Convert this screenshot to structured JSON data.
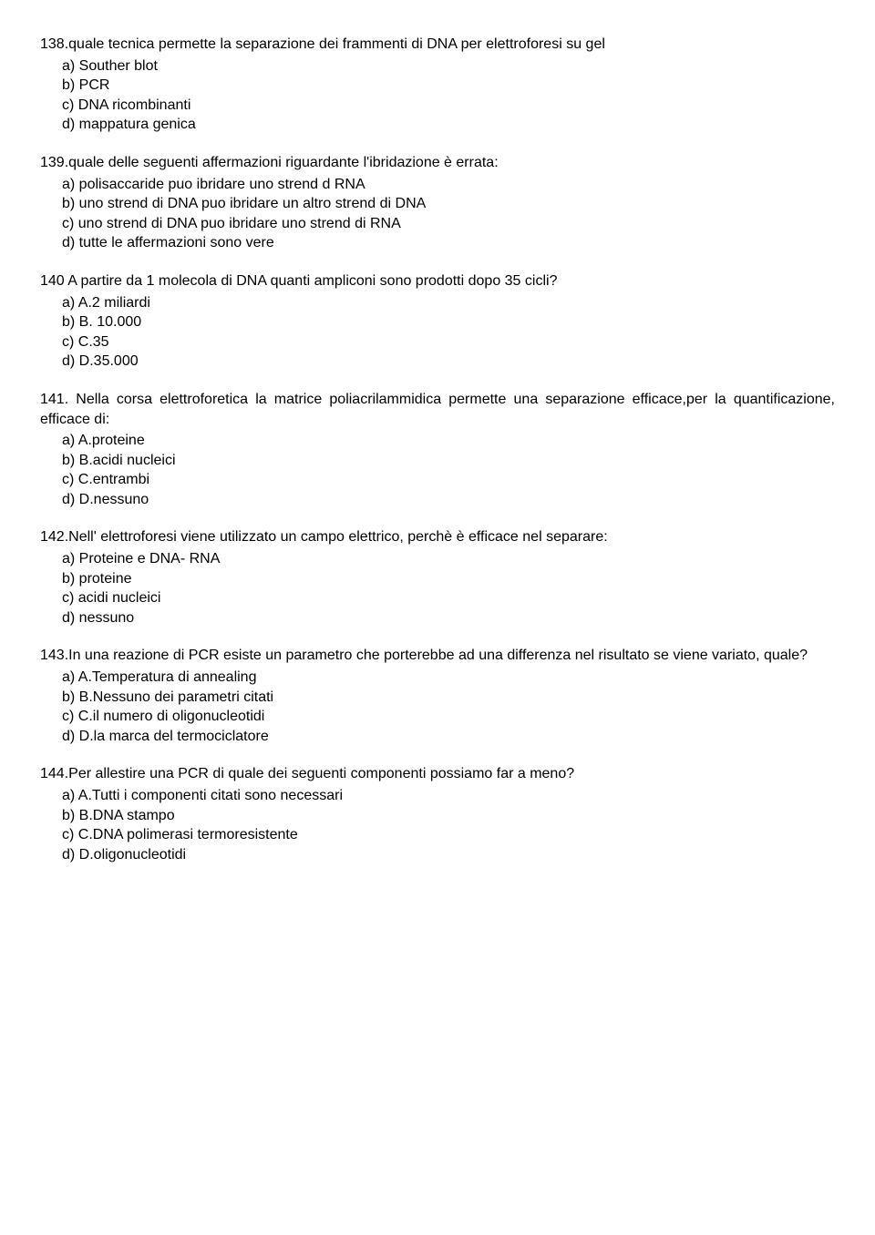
{
  "questions": [
    {
      "text": "138.quale tecnica permette la separazione dei frammenti di DNA per elettroforesi su gel",
      "justify": true,
      "options": [
        "a) Souther blot",
        "b) PCR",
        "c) DNA ricombinanti",
        "d) mappatura genica"
      ]
    },
    {
      "text": "139.quale delle seguenti affermazioni riguardante l'ibridazione è errata:",
      "justify": false,
      "options": [
        "a) polisaccaride puo ibridare uno strend d RNA",
        "b) uno strend di DNA puo ibridare un altro strend di DNA",
        "c) uno strend di DNA puo ibridare uno strend di RNA",
        "d) tutte le affermazioni sono vere"
      ]
    },
    {
      "text": "140 A partire da 1 molecola di DNA quanti ampliconi sono prodotti dopo 35 cicli?",
      "justify": true,
      "options": [
        "a) A.2 miliardi",
        "b) B. 10.000",
        "c) C.35",
        "d) D.35.000"
      ]
    },
    {
      "text": "141. Nella corsa elettroforetica la matrice poliacrilammidica permette una separazione efficace,per la quantificazione, efficace di:",
      "justify": true,
      "options": [
        "a) A.proteine",
        "b) B.acidi nucleici",
        "c) C.entrambi",
        "d) D.nessuno"
      ]
    },
    {
      "text": "142.Nell' elettroforesi viene utilizzato un campo elettrico, perchè è efficace nel separare:",
      "justify": true,
      "options": [
        "a) Proteine e DNA- RNA",
        "b) proteine",
        "c) acidi nucleici",
        "d) nessuno"
      ]
    },
    {
      "text": "143.In una reazione di PCR esiste un parametro che porterebbe ad una differenza nel risultato se viene variato, quale?",
      "justify": true,
      "options": [
        "a) A.Temperatura di annealing",
        "b) B.Nessuno dei parametri citati",
        "c) C.il numero di oligonucleotidi",
        "d) D.la marca del termociclatore"
      ]
    },
    {
      "text": "144.Per allestire una PCR di quale dei seguenti componenti possiamo far a meno?",
      "justify": true,
      "options": [
        "a) A.Tutti i componenti citati sono necessari",
        "b) B.DNA stampo",
        "c) C.DNA polimerasi termoresistente",
        "d) D.oligonucleotidi"
      ]
    }
  ]
}
